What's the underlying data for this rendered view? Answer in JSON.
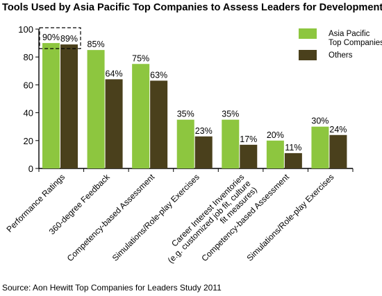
{
  "chart_data": {
    "type": "bar",
    "title": "Tools Used by Asia Pacific Top Companies to Assess Leaders for Development",
    "categories": [
      "Performance Ratings",
      "360-degree Feedback",
      "Competency-based Assessment",
      "Simulations/Role-play Exercises",
      "Career Interest Inventories (e.g. customized job fit, culture fit measures)",
      "Competency-based Assessment",
      "Simulations/Role-play Exercises"
    ],
    "category_lines": [
      [
        "Performance Ratings"
      ],
      [
        "360-degree Feedback"
      ],
      [
        "Competency-based Assessment"
      ],
      [
        "Simulations/Role-play Exercises"
      ],
      [
        "Career Interest Inventories",
        "(e.g. customized job fit, culture",
        "fit measures)"
      ],
      [
        "Competency-based Assessment"
      ],
      [
        "Simulations/Role-play Exercises"
      ]
    ],
    "series": [
      {
        "name": "Asia Pacific Top Companies",
        "legend_lines": [
          "Asia Pacific",
          "Top Companies"
        ],
        "values": [
          90,
          85,
          75,
          35,
          35,
          20,
          30
        ],
        "color": "#8dc63f"
      },
      {
        "name": "Others",
        "legend_lines": [
          "Others"
        ],
        "values": [
          89,
          64,
          63,
          23,
          17,
          11,
          24
        ],
        "color": "#4a401c"
      }
    ],
    "data_labels": [
      [
        "90%",
        "85%",
        "75%",
        "35%",
        "35%",
        "20%",
        "30%"
      ],
      [
        "89%",
        "64%",
        "63%",
        "23%",
        "17%",
        "11%",
        "24%"
      ]
    ],
    "yticks": [
      0,
      20,
      40,
      60,
      80,
      100
    ],
    "ylim": [
      0,
      100
    ],
    "xlabel": "",
    "ylabel": "",
    "grid": false,
    "legend_position": "top-right",
    "highlight": "dashed box around the Performance Ratings values",
    "source": "Source: Aon Hewitt Top Companies for Leaders Study 2011"
  }
}
